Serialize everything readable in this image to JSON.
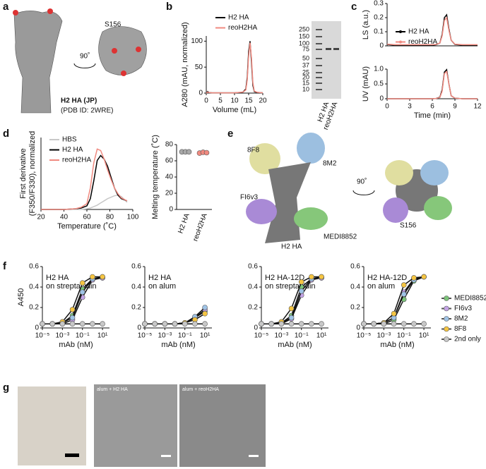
{
  "figure_a": {
    "panel": "a",
    "rotation": "90˚",
    "site": "S156",
    "protein": "H2 HA (JP)",
    "pdb": "(PDB ID: 2WRE)"
  },
  "gel": {
    "markers": [
      "250",
      "150",
      "100",
      "75",
      "50",
      "37",
      "25",
      "20",
      "15",
      "10"
    ],
    "lanes": [
      "H2 HA",
      "reoH2HA"
    ]
  },
  "figure_e": {
    "panel": "e",
    "antibodies": [
      "8F8",
      "8M2",
      "FI6v3",
      "MEDI8852"
    ],
    "protein": "H2 HA",
    "rotation": "90˚",
    "site": "S156"
  },
  "figure_g": {
    "panel": "g",
    "images": [
      "alum + H2 HA",
      "alum + reoH2HA"
    ]
  },
  "chart_data": [
    {
      "type": "line",
      "panel": "b",
      "ylabel": "A280 (mAU, normalized)",
      "xlabel": "Volume (mL)",
      "xlim": [
        0,
        20
      ],
      "xticks": [
        0,
        5,
        10,
        15,
        20
      ],
      "ylim": [
        0,
        110
      ],
      "yticks": [
        0,
        50,
        100
      ],
      "x": [
        0,
        0.5,
        1,
        2,
        4,
        6,
        8,
        10,
        12,
        13,
        14,
        14.5,
        15,
        15.5,
        16,
        16.5,
        17,
        18,
        20
      ],
      "series": [
        {
          "name": "H2 HA",
          "color": "#000000",
          "values": [
            0,
            3,
            1,
            0.5,
            0.5,
            0.5,
            0.5,
            0.5,
            1,
            2,
            8,
            30,
            80,
            100,
            60,
            15,
            3,
            1,
            0.5
          ]
        },
        {
          "name": "reoH2HA",
          "color": "#f08a80",
          "values": [
            0,
            2,
            1,
            0.5,
            0.5,
            0.5,
            0.5,
            0.5,
            1.5,
            2,
            6,
            25,
            72,
            97,
            68,
            20,
            4,
            1.5,
            0.5
          ]
        }
      ]
    },
    {
      "type": "line",
      "panel": "c",
      "ylabel": "LS (a.u.)",
      "xlim": [
        0,
        12
      ],
      "ylim": [
        0,
        0.3
      ],
      "yticks": [
        0,
        0.1,
        0.2,
        0.3
      ],
      "markers": true,
      "x": [
        0,
        1,
        2,
        3,
        4,
        5,
        6,
        6.5,
        7,
        7.3,
        7.6,
        7.9,
        8.2,
        8.5,
        9,
        10,
        11,
        12
      ],
      "series": [
        {
          "name": "H2 HA",
          "color": "#000000",
          "values": [
            0.01,
            0.005,
            0.005,
            0.005,
            0.005,
            0.005,
            0.005,
            0.008,
            0.02,
            0.08,
            0.2,
            0.22,
            0.12,
            0.04,
            0.01,
            0.005,
            0.005,
            0.005
          ]
        },
        {
          "name": "reoH2HA",
          "color": "#f08a80",
          "values": [
            0.012,
            0.008,
            0.008,
            0.008,
            0.008,
            0.008,
            0.008,
            0.01,
            0.02,
            0.07,
            0.18,
            0.2,
            0.11,
            0.04,
            0.012,
            0.008,
            0.008,
            0.008
          ]
        }
      ]
    },
    {
      "type": "line",
      "ylabel": "UV (mAU)",
      "xlabel": "Time (min)",
      "xlim": [
        0,
        12
      ],
      "xticks": [
        0,
        3,
        6,
        9,
        12
      ],
      "ylim": [
        0,
        1
      ],
      "yticks": [
        0,
        0.5,
        {
          "value": 1,
          "label": "1.0"
        }
      ],
      "x": [
        0,
        1,
        2,
        3,
        4,
        5,
        6,
        6.5,
        7,
        7.3,
        7.6,
        7.9,
        8.2,
        8.5,
        9,
        10,
        11,
        12
      ],
      "series": [
        {
          "color": "#000000",
          "values": [
            0,
            0,
            0,
            0,
            0,
            0,
            0,
            0.01,
            0.05,
            0.3,
            0.9,
            0.98,
            0.5,
            0.1,
            0.02,
            0,
            0,
            0
          ]
        },
        {
          "color": "#f08a80",
          "values": [
            0,
            0,
            0,
            0,
            0,
            0,
            0,
            0.01,
            0.04,
            0.25,
            0.85,
            0.92,
            0.5,
            0.1,
            0.02,
            0,
            0,
            0
          ]
        }
      ]
    },
    {
      "type": "line",
      "panel": "d",
      "ylabel": [
        "First derivative",
        "(F350/F330), normalized"
      ],
      "xlabel": "Temperature (˚C)",
      "xlim": [
        20,
        100
      ],
      "xticks": [
        20,
        40,
        60,
        80,
        100
      ],
      "ylim": [
        0,
        1
      ],
      "x": [
        20,
        30,
        40,
        50,
        55,
        60,
        63,
        66,
        69,
        72,
        75,
        78,
        81,
        84,
        87,
        90,
        95
      ],
      "series": [
        {
          "name": "HBS",
          "color": "#c8c8c8",
          "values": [
            0,
            0,
            0,
            0,
            0,
            0.01,
            0.02,
            0.04,
            0.06,
            0.09,
            0.12,
            0.15,
            0.17,
            0.19,
            0.2,
            0.18,
            0.1
          ]
        },
        {
          "name": "H2 HA",
          "color": "#000000",
          "values": [
            0,
            0,
            0,
            0.01,
            0.02,
            0.05,
            0.15,
            0.4,
            0.68,
            0.75,
            0.7,
            0.6,
            0.45,
            0.3,
            0.2,
            0.15,
            0.12
          ]
        },
        {
          "name": "reoH2HA",
          "color": "#f08a80",
          "values": [
            0,
            0,
            0,
            0.01,
            0.03,
            0.08,
            0.3,
            0.65,
            0.84,
            0.82,
            0.7,
            0.55,
            0.42,
            0.3,
            0.22,
            0.16,
            0.12
          ]
        }
      ]
    },
    {
      "type": "dot",
      "ylabel": "Melting temperature (˚C)",
      "categories": [
        "H2 HA",
        "reoH2HA"
      ],
      "ylim": [
        0,
        80
      ],
      "yticks": [
        0,
        20,
        40,
        60,
        80
      ],
      "values": [
        [
          71,
          71,
          71
        ],
        [
          69.5,
          70.5,
          70
        ]
      ],
      "colors": [
        "#aaaaaa",
        "#f08a80"
      ]
    },
    {
      "type": "line",
      "panel": "f",
      "title": [
        "H2 HA",
        "on streptavidin"
      ],
      "ylabel": "A450",
      "xlabel": "mAb (nM)",
      "xscale": "log",
      "markers": true,
      "xlim": [
        1e-05,
        50
      ],
      "xticks": [
        {
          "value": 1e-05,
          "label": "10⁻⁵"
        },
        {
          "value": 0.001,
          "label": "10⁻³"
        },
        {
          "value": 0.1,
          "label": "10⁻¹"
        },
        {
          "value": 10,
          "label": "10¹"
        }
      ],
      "ylim": [
        0,
        0.6
      ],
      "yticks": [
        0,
        0.2,
        0.4,
        0.6
      ],
      "x": [
        1e-05,
        0.0001,
        0.001,
        0.01,
        0.1,
        1,
        10
      ],
      "series": [
        {
          "color": "#7cc47a",
          "values": [
            0.04,
            0.04,
            0.05,
            0.12,
            0.38,
            0.48,
            0.49
          ]
        },
        {
          "color": "#c3a3e6",
          "values": [
            0.04,
            0.04,
            0.04,
            0.08,
            0.3,
            0.47,
            0.49
          ]
        },
        {
          "color": "#9fc3e6",
          "values": [
            0.04,
            0.04,
            0.05,
            0.1,
            0.35,
            0.48,
            0.5
          ]
        },
        {
          "color": "#f5c542",
          "values": [
            0.04,
            0.04,
            0.06,
            0.18,
            0.44,
            0.5,
            0.5
          ]
        },
        {
          "color": "#c8c8c8",
          "values": [
            0.04,
            0.04,
            0.04,
            0.04,
            0.04,
            0.04,
            0.04
          ]
        }
      ]
    },
    {
      "type": "line",
      "title": [
        "H2 HA",
        "on alum"
      ],
      "xlabel": "mAb (nM)",
      "xscale": "log",
      "markers": true,
      "xlim": [
        1e-05,
        50
      ],
      "xticks": [
        {
          "value": 1e-05,
          "label": "10⁻⁵"
        },
        {
          "value": 0.001,
          "label": "10⁻³"
        },
        {
          "value": 0.1,
          "label": "10⁻¹"
        },
        {
          "value": 10,
          "label": "10¹"
        }
      ],
      "ylim": [
        0,
        0.6
      ],
      "yticks": [
        0,
        0.2,
        0.4,
        0.6
      ],
      "x": [
        1e-05,
        0.0001,
        0.001,
        0.01,
        0.1,
        1,
        10
      ],
      "series": [
        {
          "color": "#7cc47a",
          "values": [
            0.04,
            0.04,
            0.04,
            0.04,
            0.05,
            0.1,
            0.16
          ]
        },
        {
          "color": "#c3a3e6",
          "values": [
            0.04,
            0.04,
            0.04,
            0.04,
            0.05,
            0.1,
            0.18
          ]
        },
        {
          "color": "#9fc3e6",
          "values": [
            0.04,
            0.04,
            0.04,
            0.04,
            0.05,
            0.11,
            0.2
          ]
        },
        {
          "color": "#f5c542",
          "values": [
            0.04,
            0.04,
            0.04,
            0.04,
            0.05,
            0.08,
            0.14
          ]
        },
        {
          "color": "#c8c8c8",
          "values": [
            0.04,
            0.04,
            0.04,
            0.04,
            0.04,
            0.04,
            0.04
          ]
        }
      ]
    },
    {
      "type": "line",
      "title": [
        "H2 HA-12D",
        "on streptavidin"
      ],
      "xlabel": "mAb (nM)",
      "xscale": "log",
      "markers": true,
      "xlim": [
        1e-05,
        50
      ],
      "xticks": [
        {
          "value": 1e-05,
          "label": "10⁻⁵"
        },
        {
          "value": 0.001,
          "label": "10⁻³"
        },
        {
          "value": 0.1,
          "label": "10⁻¹"
        },
        {
          "value": 10,
          "label": "10¹"
        }
      ],
      "ylim": [
        0,
        0.6
      ],
      "yticks": [
        0,
        0.2,
        0.4,
        0.6
      ],
      "x": [
        1e-05,
        0.0001,
        0.001,
        0.01,
        0.1,
        1,
        10
      ],
      "series": [
        {
          "color": "#7cc47a",
          "values": [
            0.04,
            0.04,
            0.05,
            0.12,
            0.4,
            0.48,
            0.49
          ]
        },
        {
          "color": "#c3a3e6",
          "values": [
            0.04,
            0.04,
            0.04,
            0.09,
            0.32,
            0.47,
            0.49
          ]
        },
        {
          "color": "#9fc3e6",
          "values": [
            0.04,
            0.04,
            0.05,
            0.1,
            0.36,
            0.48,
            0.5
          ]
        },
        {
          "color": "#f5c542",
          "values": [
            0.04,
            0.04,
            0.06,
            0.19,
            0.45,
            0.5,
            0.5
          ]
        },
        {
          "color": "#c8c8c8",
          "values": [
            0.04,
            0.04,
            0.04,
            0.04,
            0.04,
            0.04,
            0.04
          ]
        }
      ]
    },
    {
      "type": "line",
      "title": [
        "H2 HA-12D",
        "on alum"
      ],
      "xlabel": "mAb (nM)",
      "xscale": "log",
      "markers": true,
      "xlim": [
        1e-05,
        50
      ],
      "xticks": [
        {
          "value": 1e-05,
          "label": "10⁻⁵"
        },
        {
          "value": 0.001,
          "label": "10⁻³"
        },
        {
          "value": 0.1,
          "label": "10⁻¹"
        },
        {
          "value": 10,
          "label": "10¹"
        }
      ],
      "ylim": [
        0,
        0.6
      ],
      "yticks": [
        0,
        0.2,
        0.4,
        0.6
      ],
      "x": [
        1e-05,
        0.0001,
        0.001,
        0.01,
        0.1,
        1,
        10
      ],
      "series": [
        {
          "name": "MEDI8852",
          "color": "#7cc47a",
          "values": [
            0.04,
            0.04,
            0.04,
            0.08,
            0.28,
            0.46,
            0.5
          ]
        },
        {
          "name": "FI6v3",
          "color": "#c3a3e6",
          "values": [
            0.04,
            0.04,
            0.05,
            0.1,
            0.35,
            0.48,
            0.5
          ]
        },
        {
          "name": "8M2",
          "color": "#9fc3e6",
          "values": [
            0.04,
            0.04,
            0.05,
            0.1,
            0.33,
            0.47,
            0.5
          ]
        },
        {
          "name": "8F8",
          "color": "#f5c542",
          "values": [
            0.04,
            0.04,
            0.05,
            0.14,
            0.42,
            0.49,
            0.5
          ]
        },
        {
          "name": "2nd only",
          "color": "#c8c8c8",
          "values": [
            0.04,
            0.04,
            0.04,
            0.04,
            0.04,
            0.04,
            0.04
          ]
        }
      ]
    }
  ]
}
